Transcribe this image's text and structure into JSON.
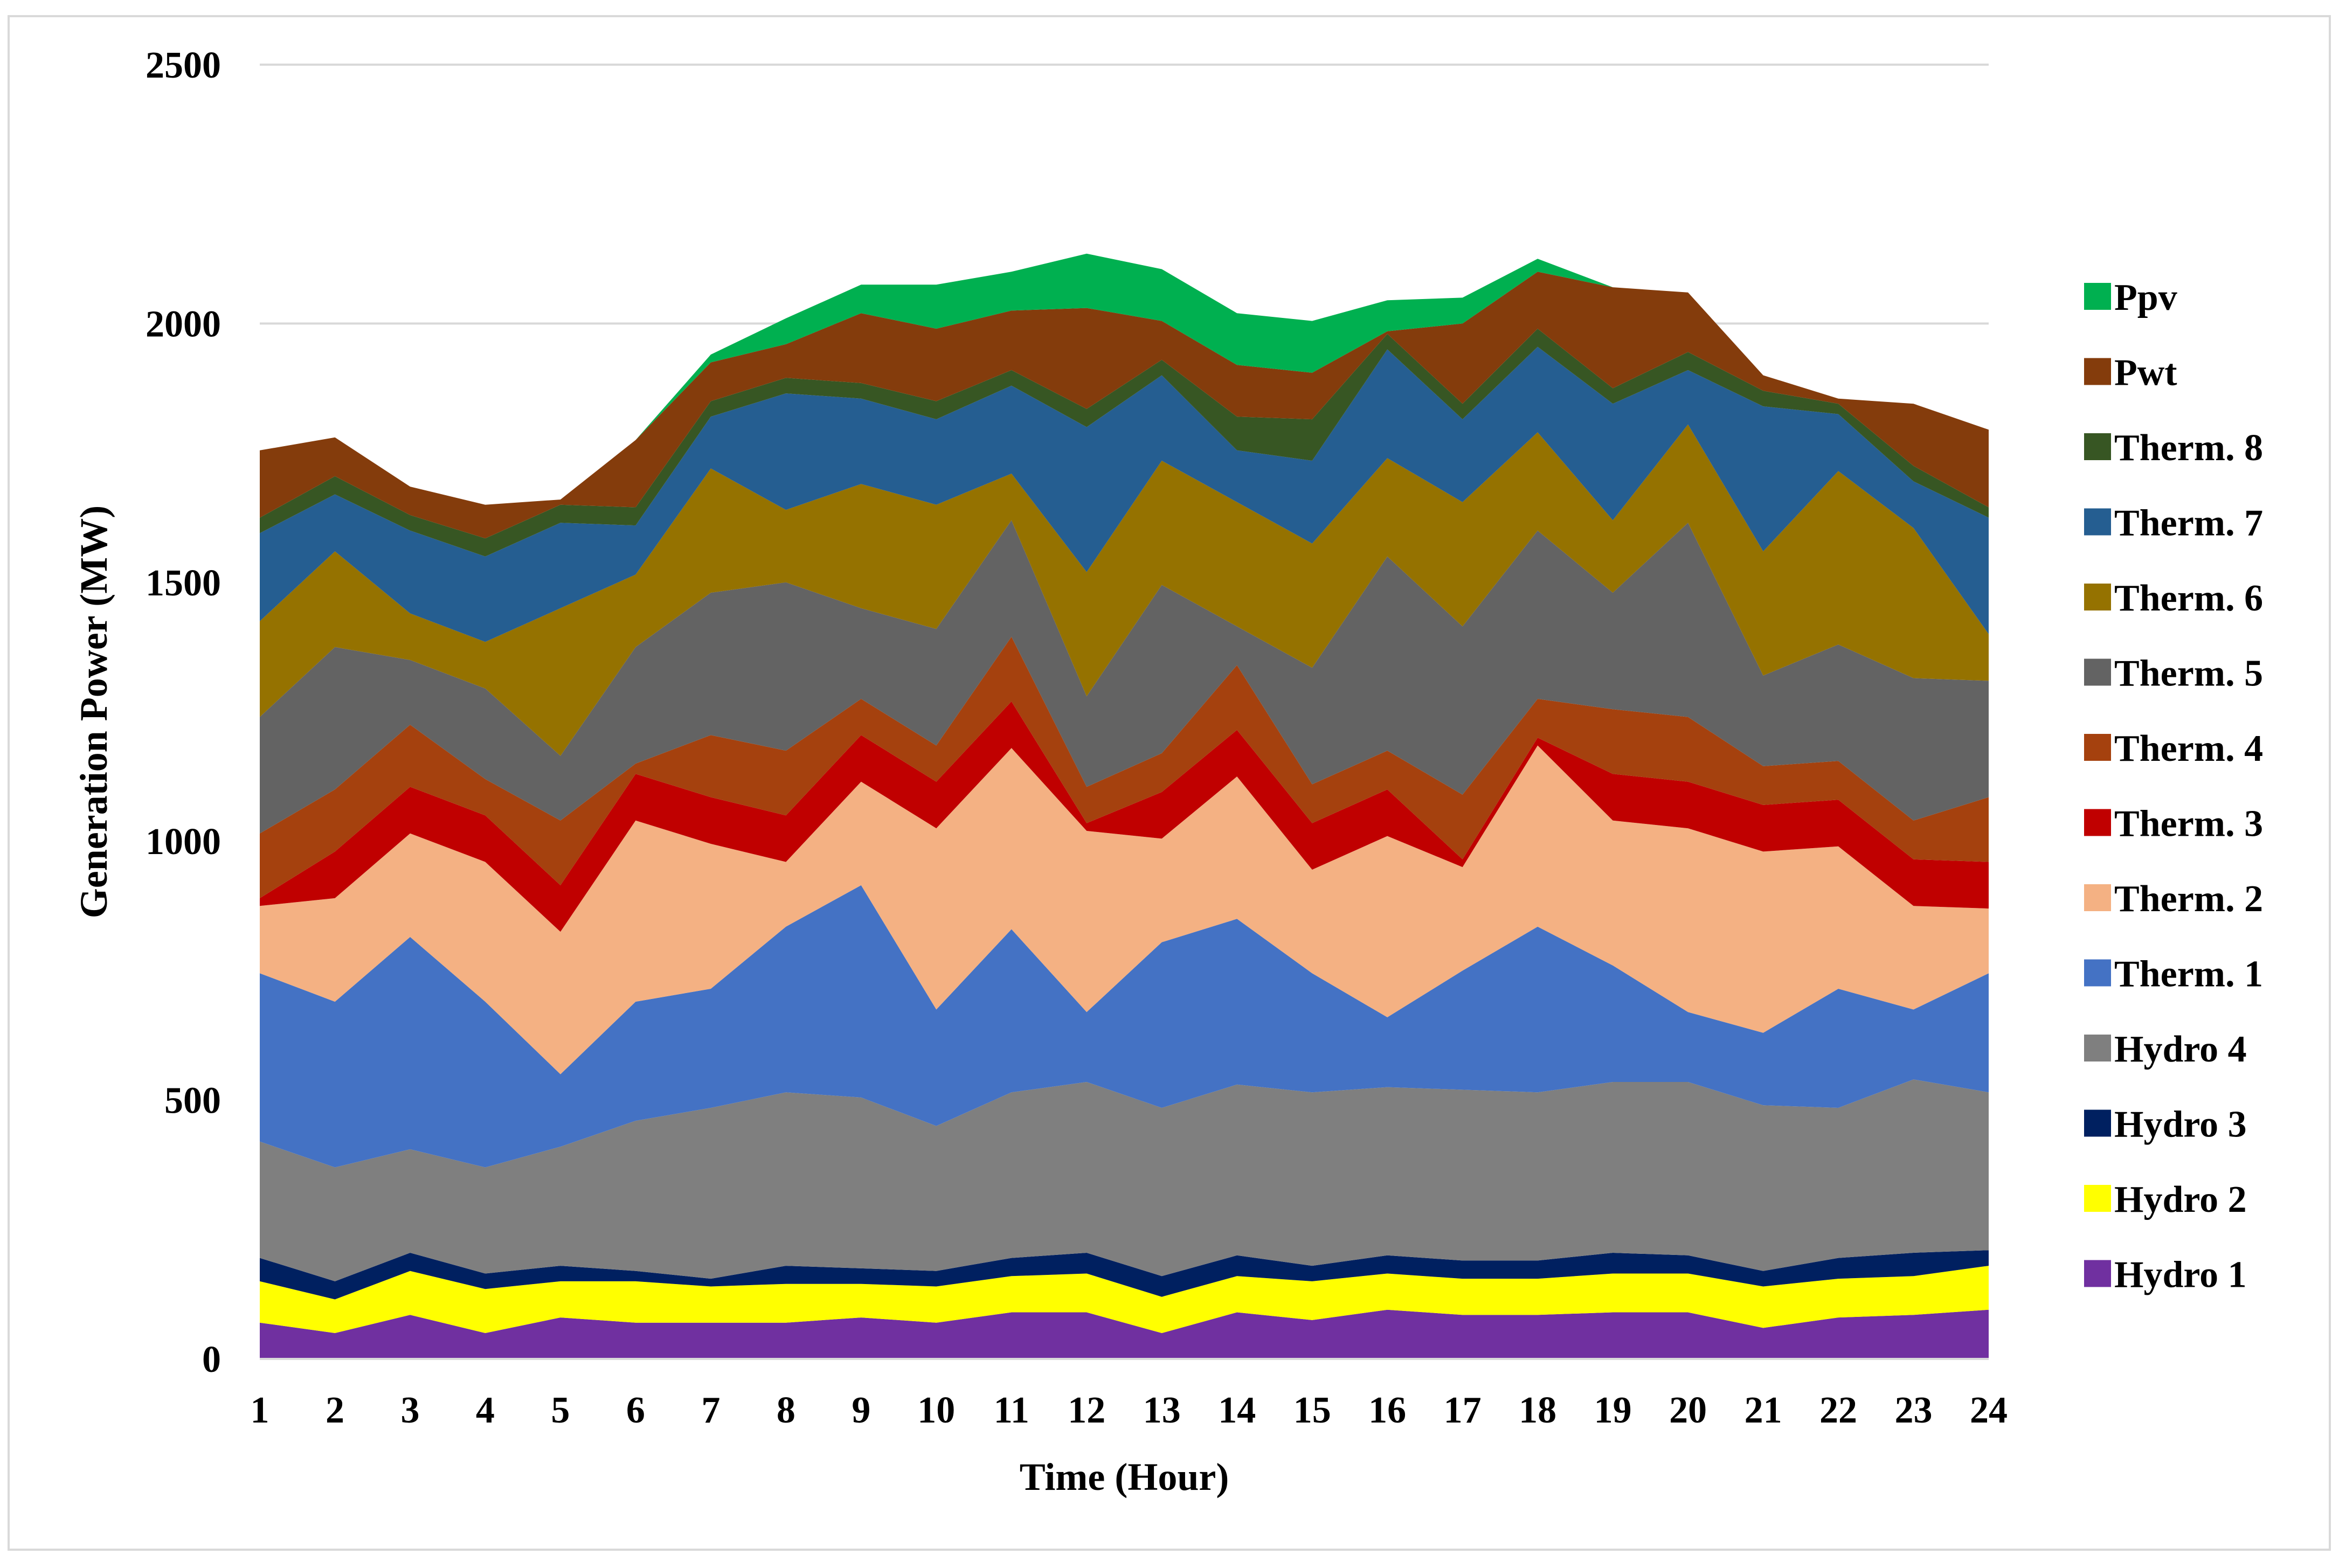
{
  "chart_data": {
    "type": "area",
    "stacked": true,
    "title": "",
    "xlabel": "Time (Hour)",
    "ylabel": "Generation Power (MW)",
    "ylim": [
      0,
      2500
    ],
    "yticks": [
      0,
      500,
      1000,
      1500,
      2000,
      2500
    ],
    "grid": "horizontal",
    "legend_position": "right",
    "categories": [
      "1",
      "2",
      "3",
      "4",
      "5",
      "6",
      "7",
      "8",
      "9",
      "10",
      "11",
      "12",
      "13",
      "14",
      "15",
      "16",
      "17",
      "18",
      "19",
      "20",
      "21",
      "22",
      "23",
      "24"
    ],
    "series": [
      {
        "name": "Hydro 1",
        "color": "#7030a0",
        "values": [
          70,
          50,
          85,
          50,
          80,
          70,
          70,
          70,
          80,
          70,
          90,
          90,
          50,
          90,
          75,
          95,
          85,
          85,
          90,
          90,
          60,
          80,
          85,
          95
        ]
      },
      {
        "name": "Hydro 2",
        "color": "#ffff00",
        "values": [
          80,
          65,
          85,
          85,
          70,
          80,
          70,
          75,
          65,
          70,
          70,
          75,
          70,
          70,
          75,
          70,
          70,
          70,
          75,
          75,
          80,
          75,
          75,
          85
        ]
      },
      {
        "name": "Hydro 3",
        "color": "#002060",
        "values": [
          45,
          35,
          35,
          30,
          30,
          20,
          15,
          35,
          30,
          30,
          35,
          40,
          40,
          40,
          30,
          35,
          35,
          35,
          40,
          35,
          30,
          40,
          45,
          30
        ]
      },
      {
        "name": "Hydro 4",
        "color": "#7f7f7f",
        "values": [
          225,
          220,
          200,
          205,
          230,
          290,
          330,
          335,
          330,
          280,
          320,
          330,
          325,
          330,
          335,
          325,
          330,
          325,
          330,
          335,
          320,
          290,
          335,
          305
        ]
      },
      {
        "name": "Therm. 1",
        "color": "#4472c4",
        "values": [
          325,
          320,
          410,
          320,
          140,
          230,
          230,
          320,
          410,
          225,
          315,
          135,
          320,
          320,
          230,
          135,
          230,
          320,
          225,
          135,
          140,
          230,
          135,
          230
        ]
      },
      {
        "name": "Therm. 2",
        "color": "#f4b183",
        "values": [
          130,
          200,
          200,
          270,
          275,
          350,
          280,
          125,
          200,
          350,
          350,
          350,
          200,
          275,
          200,
          350,
          200,
          350,
          280,
          355,
          350,
          275,
          200,
          125
        ]
      },
      {
        "name": "Therm. 3",
        "color": "#c00000",
        "values": [
          15,
          90,
          90,
          90,
          90,
          90,
          90,
          90,
          90,
          90,
          90,
          15,
          90,
          90,
          90,
          90,
          15,
          15,
          90,
          90,
          90,
          90,
          90,
          90
        ]
      },
      {
        "name": "Therm. 4",
        "color": "#a5410e",
        "values": [
          125,
          120,
          120,
          70,
          125,
          20,
          120,
          125,
          70,
          70,
          125,
          70,
          75,
          125,
          75,
          75,
          125,
          75,
          125,
          125,
          75,
          75,
          75,
          125
        ]
      },
      {
        "name": "Therm. 5",
        "color": "#636363",
        "values": [
          225,
          275,
          125,
          175,
          125,
          225,
          275,
          325,
          175,
          225,
          225,
          175,
          325,
          75,
          225,
          375,
          325,
          325,
          225,
          375,
          175,
          225,
          275,
          225
        ]
      },
      {
        "name": "Therm. 6",
        "color": "#957200",
        "values": [
          185,
          185,
          90,
          90,
          285,
          140,
          240,
          140,
          240,
          240,
          90,
          240,
          240,
          240,
          240,
          190,
          240,
          190,
          140,
          190,
          240,
          335,
          290,
          90
        ]
      },
      {
        "name": "Therm. 7",
        "color": "#255e91",
        "values": [
          170,
          110,
          160,
          165,
          165,
          95,
          100,
          225,
          165,
          165,
          170,
          280,
          165,
          100,
          160,
          210,
          160,
          165,
          225,
          105,
          280,
          110,
          90,
          225
        ]
      },
      {
        "name": "Therm. 8",
        "color": "#375623",
        "values": [
          30,
          35,
          30,
          35,
          35,
          35,
          30,
          30,
          30,
          35,
          30,
          35,
          30,
          65,
          80,
          30,
          30,
          35,
          30,
          35,
          30,
          20,
          30,
          20
        ]
      },
      {
        "name": "Pwt",
        "color": "#843c0c",
        "values": [
          130,
          75,
          55,
          65,
          10,
          130,
          75,
          65,
          135,
          140,
          115,
          195,
          75,
          100,
          90,
          5,
          155,
          110,
          195,
          115,
          30,
          10,
          120,
          150
        ]
      },
      {
        "name": "Ppv",
        "color": "#00b050",
        "values": [
          0,
          0,
          0,
          0,
          0,
          0,
          15,
          50,
          55,
          85,
          75,
          105,
          100,
          100,
          100,
          60,
          50,
          25,
          0,
          0,
          0,
          0,
          0,
          0
        ]
      }
    ]
  }
}
